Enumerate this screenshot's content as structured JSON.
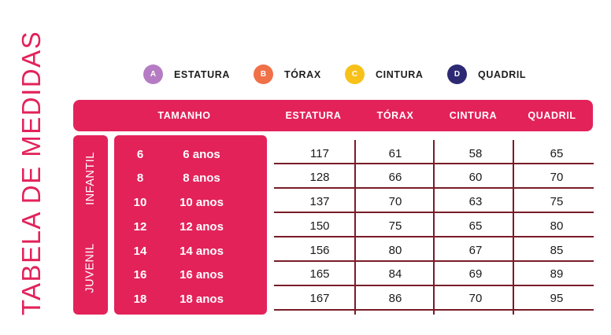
{
  "title": "TABELA DE MEDIDAS",
  "legend": [
    {
      "letter": "A",
      "label": "ESTATURA",
      "color": "#b57cc4"
    },
    {
      "letter": "B",
      "label": "TÓRAX",
      "color": "#f07048"
    },
    {
      "letter": "C",
      "label": "CINTURA",
      "color": "#f7c11a"
    },
    {
      "letter": "D",
      "label": "QUADRIL",
      "color": "#2d2a73"
    }
  ],
  "header": {
    "tamanho": "TAMANHO",
    "estatura": "ESTATURA",
    "torax": "TÓRAX",
    "cintura": "CINTURA",
    "quadril": "QUADRIL"
  },
  "groups": {
    "infantil": "INFANTIL",
    "juvenil": "JUVENIL"
  },
  "rows": [
    {
      "size": "6",
      "age": "6 anos",
      "estatura": "117",
      "torax": "61",
      "cintura": "58",
      "quadril": "65"
    },
    {
      "size": "8",
      "age": "8 anos",
      "estatura": "128",
      "torax": "66",
      "cintura": "60",
      "quadril": "70"
    },
    {
      "size": "10",
      "age": "10 anos",
      "estatura": "137",
      "torax": "70",
      "cintura": "63",
      "quadril": "75"
    },
    {
      "size": "12",
      "age": "12 anos",
      "estatura": "150",
      "torax": "75",
      "cintura": "65",
      "quadril": "80"
    },
    {
      "size": "14",
      "age": "14 anos",
      "estatura": "156",
      "torax": "80",
      "cintura": "67",
      "quadril": "85"
    },
    {
      "size": "16",
      "age": "16 anos",
      "estatura": "165",
      "torax": "84",
      "cintura": "69",
      "quadril": "89"
    },
    {
      "size": "18",
      "age": "18 anos",
      "estatura": "167",
      "torax": "86",
      "cintura": "70",
      "quadril": "95"
    }
  ],
  "colors": {
    "brand": "#e3225a",
    "grid_lines": "#7a1c28"
  }
}
